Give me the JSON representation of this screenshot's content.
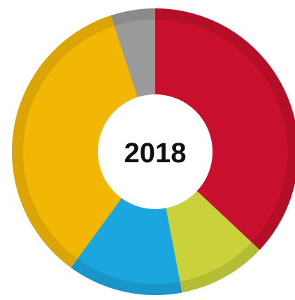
{
  "chart_data": {
    "type": "pie",
    "center_label": "2018",
    "slices": [
      {
        "value": 37.0,
        "color": "#C8102E"
      },
      {
        "value": 10.0,
        "color": "#C9D23A"
      },
      {
        "value": 13.0,
        "color": "#1CA6E0"
      },
      {
        "value": 35.0,
        "color": "#F2B705"
      },
      {
        "value": 5.0,
        "color": "#9A9A9A"
      }
    ]
  }
}
